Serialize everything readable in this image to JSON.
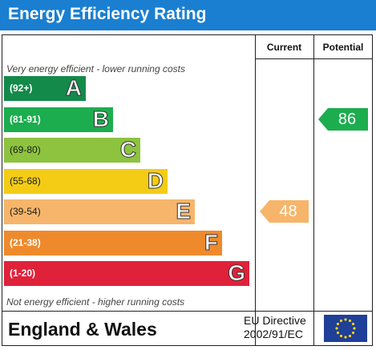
{
  "header": {
    "title": "Energy Efficiency Rating"
  },
  "columns": {
    "current": "Current",
    "potential": "Potential"
  },
  "notes": {
    "top": "Very energy efficient - lower running costs",
    "bottom": "Not energy efficient - higher running costs"
  },
  "chart_data": {
    "type": "bar",
    "title": "Energy Efficiency Rating",
    "categories": [
      "(92+)",
      "(81-91)",
      "(69-80)",
      "(55-68)",
      "(39-54)",
      "(21-38)",
      "(1-20)"
    ],
    "bands": [
      {
        "range": "(92+)",
        "letter": "A",
        "color": "#138a4a"
      },
      {
        "range": "(81-91)",
        "letter": "B",
        "color": "#1cad4e"
      },
      {
        "range": "(69-80)",
        "letter": "C",
        "color": "#8dc33f"
      },
      {
        "range": "(55-68)",
        "letter": "D",
        "color": "#f4cc16"
      },
      {
        "range": "(39-54)",
        "letter": "E",
        "color": "#f6b56a"
      },
      {
        "range": "(21-38)",
        "letter": "F",
        "color": "#ef8a2c"
      },
      {
        "range": "(1-20)",
        "letter": "G",
        "color": "#e0213a"
      }
    ],
    "current": {
      "value": 48,
      "band": "E",
      "color": "#f6b56a"
    },
    "potential": {
      "value": 86,
      "band": "B",
      "color": "#1cad4e"
    }
  },
  "footer": {
    "region": "England & Wales",
    "directive_line1": "EU Directive",
    "directive_line2": "2002/91/EC",
    "flag_icon": "eu-flag-icon"
  }
}
